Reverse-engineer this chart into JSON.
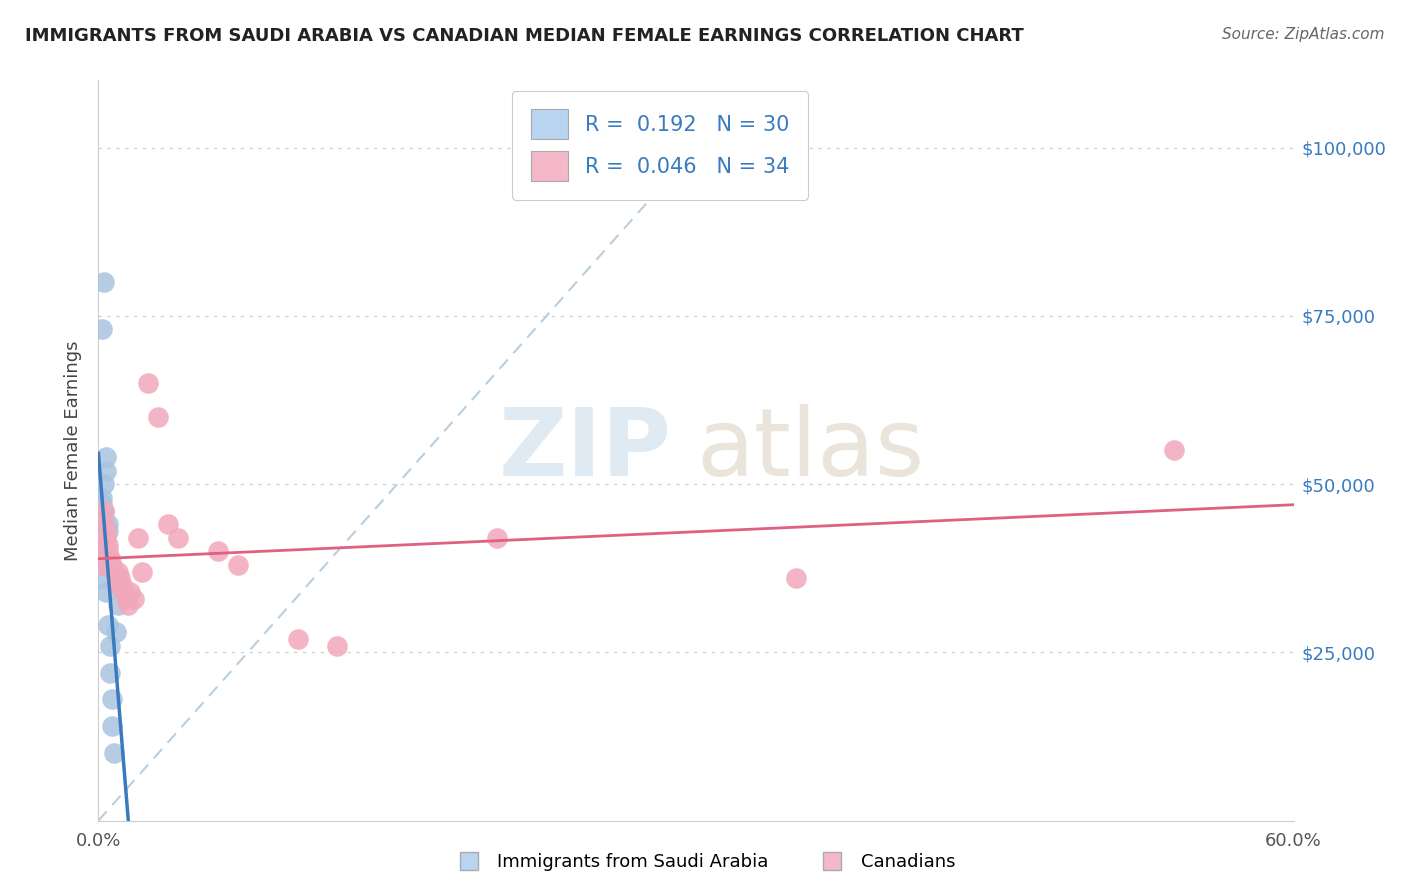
{
  "title": "IMMIGRANTS FROM SAUDI ARABIA VS CANADIAN MEDIAN FEMALE EARNINGS CORRELATION CHART",
  "source": "Source: ZipAtlas.com",
  "ylabel": "Median Female Earnings",
  "y_tick_labels": [
    "$25,000",
    "$50,000",
    "$75,000",
    "$100,000"
  ],
  "y_tick_values": [
    25000,
    50000,
    75000,
    100000
  ],
  "y_min": 0,
  "y_max": 110000,
  "x_min": 0.0,
  "x_max": 0.6,
  "blue_color": "#a8c4e0",
  "pink_color": "#f2a8bb",
  "trendline_blue_color": "#3a7abf",
  "trendline_pink_color": "#e06080",
  "diagonal_color": "#b8cfe0",
  "watermark_zip": "ZIP",
  "watermark_atlas": "atlas",
  "legend_text_color": "#3a7abf",
  "legend_box_color_blue": "#b8d4f0",
  "legend_box_color_pink": "#f4b8c8",
  "blue_x": [
    0.001,
    0.001,
    0.001,
    0.001,
    0.002,
    0.002,
    0.002,
    0.002,
    0.002,
    0.002,
    0.003,
    0.003,
    0.003,
    0.003,
    0.003,
    0.004,
    0.004,
    0.004,
    0.005,
    0.005,
    0.005,
    0.006,
    0.006,
    0.007,
    0.007,
    0.008,
    0.009,
    0.01,
    0.003,
    0.002
  ],
  "blue_y": [
    40000,
    42000,
    43000,
    44000,
    45000,
    46000,
    47000,
    48000,
    38000,
    36000,
    44000,
    45000,
    46000,
    42000,
    50000,
    52000,
    54000,
    34000,
    43000,
    44000,
    29000,
    26000,
    22000,
    18000,
    14000,
    10000,
    28000,
    32000,
    80000,
    73000
  ],
  "pink_x": [
    0.001,
    0.002,
    0.003,
    0.003,
    0.004,
    0.004,
    0.005,
    0.005,
    0.006,
    0.007,
    0.008,
    0.009,
    0.01,
    0.01,
    0.011,
    0.012,
    0.013,
    0.014,
    0.015,
    0.016,
    0.018,
    0.02,
    0.022,
    0.025,
    0.03,
    0.035,
    0.04,
    0.06,
    0.07,
    0.1,
    0.12,
    0.2,
    0.35,
    0.54
  ],
  "pink_y": [
    40000,
    38000,
    44000,
    46000,
    42000,
    43000,
    40000,
    41000,
    39000,
    38000,
    37000,
    36000,
    37000,
    35000,
    36000,
    35000,
    34000,
    33000,
    32000,
    34000,
    33000,
    42000,
    37000,
    65000,
    60000,
    44000,
    42000,
    40000,
    38000,
    27000,
    26000,
    42000,
    36000,
    55000
  ]
}
